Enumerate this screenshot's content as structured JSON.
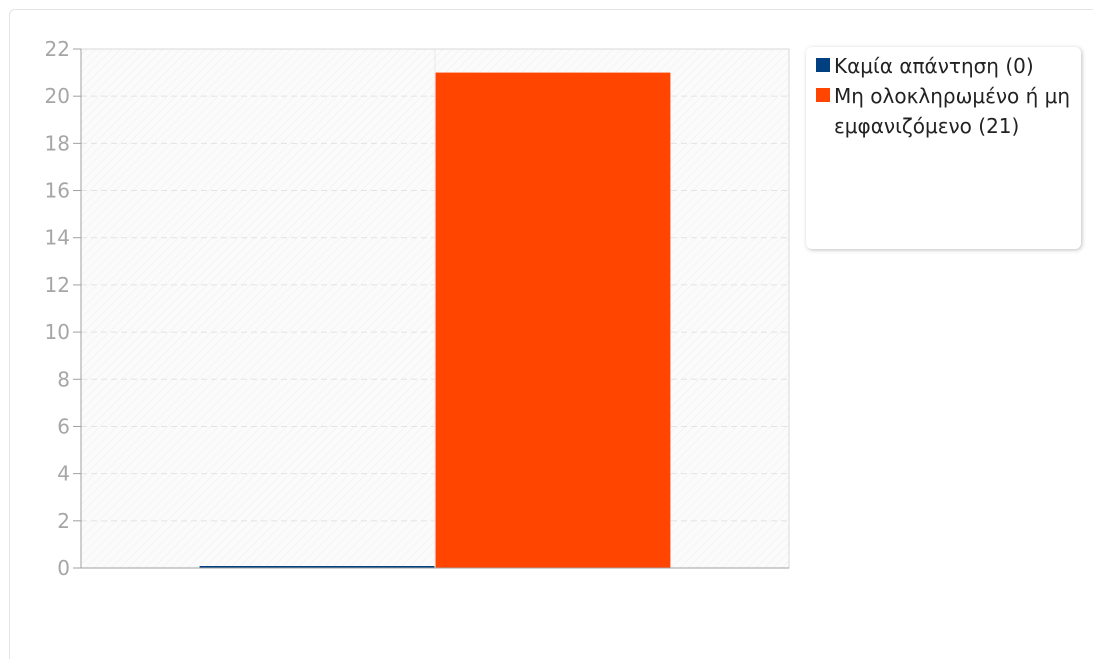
{
  "chart_data": {
    "type": "bar",
    "categories": [
      "Καμία απάντηση",
      "Μη ολοκληρωμένο ή μη εμφανιζόμενο"
    ],
    "values": [
      0,
      21
    ],
    "colors": [
      "#004080",
      "#ff4500"
    ],
    "title": "",
    "xlabel": "",
    "ylabel": "",
    "ylim": [
      0,
      22
    ],
    "yticks": [
      "0",
      "2",
      "4",
      "6",
      "8",
      "10",
      "12",
      "14",
      "16",
      "18",
      "20",
      "22"
    ],
    "grid": true,
    "legend_position": "right",
    "legend": [
      {
        "label": "Καμία απάντηση (0)",
        "color": "#004080"
      },
      {
        "label": "Μη ολοκληρωμένο ή μη εμφανιζόμενο (21)",
        "color": "#ff4500"
      }
    ]
  }
}
